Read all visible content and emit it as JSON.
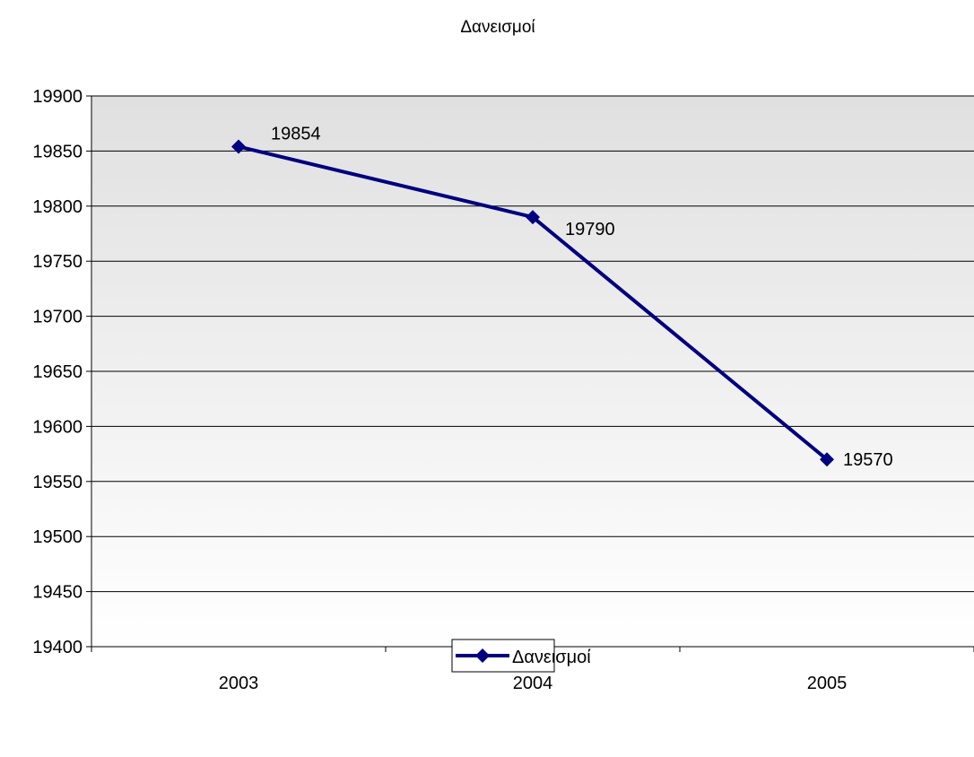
{
  "chart_data": {
    "type": "line",
    "title": "Δανεισμοί",
    "xlabel": "",
    "ylabel": "",
    "categories": [
      "2003",
      "2004",
      "2005"
    ],
    "series": [
      {
        "name": "Δανεισμοί",
        "values": [
          19854,
          19790,
          19570
        ],
        "color": "#000080"
      }
    ],
    "ylim": [
      19400,
      19900
    ],
    "yticks": [
      "19400",
      "19450",
      "19500",
      "19550",
      "19600",
      "19650",
      "19700",
      "19750",
      "19800",
      "19850",
      "19900"
    ],
    "grid": true,
    "legend_position": "bottom",
    "plot_background": "gradient-gray-to-white",
    "data_labels": true,
    "marker": "diamond"
  }
}
